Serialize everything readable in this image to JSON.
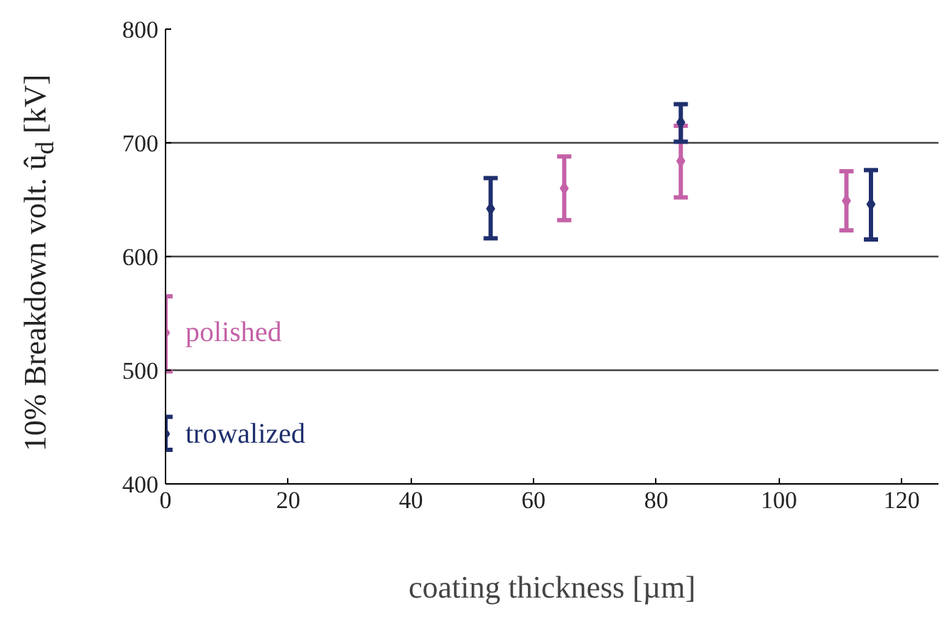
{
  "chart_data": {
    "type": "scatter",
    "xlabel": "coating thickness [µm]",
    "ylabel": "10% Breakdown volt. û$_{d}$ [kV]",
    "xlim": [
      0,
      126
    ],
    "xticks": [
      0,
      20,
      40,
      60,
      80,
      100,
      120
    ],
    "ylim": [
      400,
      800
    ],
    "yticks": [
      400,
      500,
      600,
      700,
      800
    ],
    "grid": "y",
    "legend": false,
    "marker": "diamond",
    "series": [
      {
        "name": "polished",
        "color": "#c462a8",
        "x": [
          0,
          65,
          84,
          111
        ],
        "values": [
          533,
          660,
          684,
          649
        ],
        "errors": [
          [
            499,
            565
          ],
          [
            632,
            688
          ],
          [
            652,
            715
          ],
          [
            623,
            675
          ]
        ]
      },
      {
        "name": "trowalized",
        "color": "#1f2f6e",
        "x": [
          0,
          53,
          84,
          115
        ],
        "values": [
          444,
          642,
          718,
          646
        ],
        "errors": [
          [
            430,
            459
          ],
          [
            616,
            669
          ],
          [
            701,
            734
          ],
          [
            615,
            676
          ]
        ]
      }
    ]
  }
}
